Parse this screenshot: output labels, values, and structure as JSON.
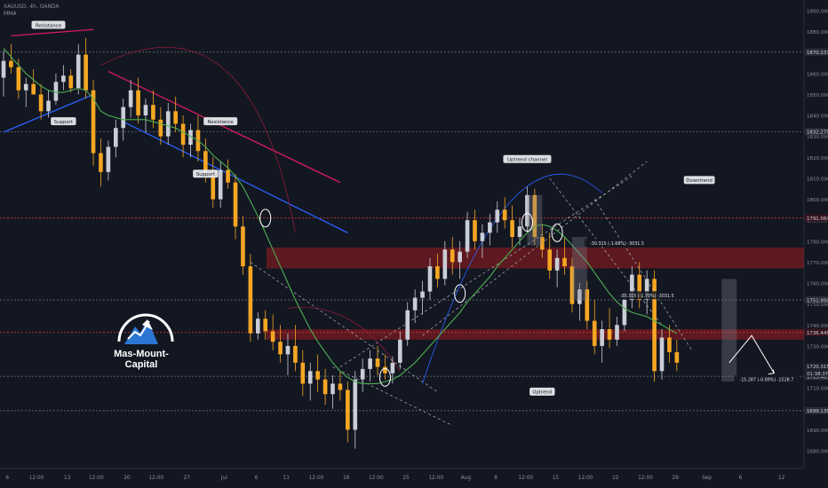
{
  "header": {
    "symbol_line": "XAUUSD, 4h, OANDA",
    "indicator": "MMA"
  },
  "brand": {
    "name": "Mas-Mount-Capital"
  },
  "colors": {
    "background": "#131722",
    "bull": "#c9cdd6",
    "bear": "#f5a623",
    "resistance": "#d81b60",
    "support": "#2962ff",
    "ma": "#4caf50",
    "zone": "#b71c1c",
    "level_line": "#e53935",
    "axis_text": "#8b90a0",
    "arc_blue": "#2962ff"
  },
  "chart_data": {
    "type": "candlestick",
    "symbol": "XAUUSD",
    "timeframe": "4h",
    "broker": "OANDA",
    "ylim": [
      1675,
      1900
    ],
    "y_ticks": [
      "1890.000",
      "1880.000",
      "1870.000",
      "1860.000",
      "1850.000",
      "1840.000",
      "1830.000",
      "1820.000",
      "1810.000",
      "1800.000",
      "1790.000",
      "1780.000",
      "1770.000",
      "1760.000",
      "1750.000",
      "1740.000",
      "1730.000",
      "1720.000",
      "1710.000",
      "1700.000",
      "1690.000",
      "1680.000"
    ],
    "y_tick_values": [
      1890,
      1880,
      1870,
      1860,
      1850,
      1840,
      1830,
      1820,
      1810,
      1800,
      1790,
      1780,
      1770,
      1760,
      1750,
      1740,
      1730,
      1720,
      1710,
      1700,
      1690,
      1680
    ],
    "x_ticks": [
      "6",
      "12:00",
      "13",
      "12:00",
      "20",
      "12:00",
      "27",
      "Jul",
      "6",
      "11",
      "12:00",
      "18",
      "12:00",
      "25",
      "12:00",
      "Aug",
      "8",
      "12:00",
      "15",
      "12:00",
      "22",
      "12:00",
      "29",
      "Sep",
      "6",
      "12"
    ],
    "x_tick_index": [
      0.5,
      4.4,
      8.5,
      12.4,
      16.5,
      20.4,
      24.5,
      29.5,
      33.8,
      37.8,
      41.8,
      45.8,
      49.8,
      53.8,
      57.8,
      61.8,
      65.8,
      69.8,
      73.8,
      77.8,
      81.8,
      85.8,
      89.8,
      94.0,
      98.5,
      104.0
    ],
    "x_max_index": 107,
    "candles": [
      [
        1858,
        1871,
        1849,
        1866
      ],
      [
        1866,
        1874,
        1860,
        1863
      ],
      [
        1863,
        1867,
        1848,
        1852
      ],
      [
        1852,
        1858,
        1844,
        1855
      ],
      [
        1855,
        1862,
        1850,
        1850
      ],
      [
        1850,
        1855,
        1838,
        1842
      ],
      [
        1842,
        1852,
        1839,
        1847
      ],
      [
        1847,
        1860,
        1845,
        1856
      ],
      [
        1856,
        1864,
        1852,
        1859
      ],
      [
        1859,
        1862,
        1851,
        1853
      ],
      [
        1853,
        1874,
        1850,
        1869
      ],
      [
        1869,
        1877,
        1848,
        1852
      ],
      [
        1852,
        1857,
        1816,
        1822
      ],
      [
        1822,
        1829,
        1806,
        1813
      ],
      [
        1813,
        1828,
        1809,
        1825
      ],
      [
        1825,
        1838,
        1820,
        1834
      ],
      [
        1834,
        1848,
        1828,
        1844
      ],
      [
        1844,
        1857,
        1839,
        1852
      ],
      [
        1852,
        1858,
        1836,
        1840
      ],
      [
        1840,
        1848,
        1832,
        1845
      ],
      [
        1845,
        1852,
        1834,
        1838
      ],
      [
        1838,
        1844,
        1826,
        1830
      ],
      [
        1830,
        1846,
        1826,
        1842
      ],
      [
        1842,
        1849,
        1832,
        1836
      ],
      [
        1836,
        1840,
        1820,
        1826
      ],
      [
        1826,
        1836,
        1820,
        1833
      ],
      [
        1833,
        1840,
        1818,
        1823
      ],
      [
        1823,
        1829,
        1808,
        1812
      ],
      [
        1812,
        1820,
        1796,
        1800
      ],
      [
        1800,
        1818,
        1796,
        1814
      ],
      [
        1814,
        1819,
        1805,
        1808
      ],
      [
        1808,
        1812,
        1781,
        1787
      ],
      [
        1787,
        1792,
        1764,
        1768
      ],
      [
        1768,
        1774,
        1732,
        1736
      ],
      [
        1736,
        1746,
        1733,
        1743
      ],
      [
        1743,
        1747,
        1733,
        1737
      ],
      [
        1737,
        1745,
        1728,
        1732
      ],
      [
        1732,
        1740,
        1722,
        1726
      ],
      [
        1726,
        1736,
        1716,
        1730
      ],
      [
        1730,
        1740,
        1718,
        1722
      ],
      [
        1722,
        1728,
        1706,
        1712
      ],
      [
        1712,
        1722,
        1704,
        1718
      ],
      [
        1718,
        1726,
        1708,
        1714
      ],
      [
        1714,
        1719,
        1702,
        1707
      ],
      [
        1707,
        1716,
        1700,
        1712
      ],
      [
        1712,
        1718,
        1704,
        1709
      ],
      [
        1709,
        1713,
        1684,
        1690
      ],
      [
        1690,
        1718,
        1681,
        1714
      ],
      [
        1714,
        1724,
        1708,
        1719
      ],
      [
        1719,
        1728,
        1713,
        1724
      ],
      [
        1724,
        1730,
        1716,
        1720
      ],
      [
        1720,
        1726,
        1714,
        1717
      ],
      [
        1717,
        1725,
        1712,
        1722
      ],
      [
        1722,
        1737,
        1719,
        1733
      ],
      [
        1733,
        1751,
        1730,
        1747
      ],
      [
        1747,
        1757,
        1741,
        1753
      ],
      [
        1753,
        1761,
        1745,
        1756
      ],
      [
        1756,
        1772,
        1752,
        1768
      ],
      [
        1768,
        1774,
        1758,
        1762
      ],
      [
        1762,
        1780,
        1759,
        1776
      ],
      [
        1776,
        1782,
        1764,
        1770
      ],
      [
        1770,
        1780,
        1762,
        1775
      ],
      [
        1775,
        1794,
        1772,
        1790
      ],
      [
        1790,
        1795,
        1776,
        1780
      ],
      [
        1780,
        1788,
        1772,
        1784
      ],
      [
        1784,
        1793,
        1778,
        1789
      ],
      [
        1789,
        1799,
        1784,
        1795
      ],
      [
        1795,
        1801,
        1786,
        1790
      ],
      [
        1790,
        1797,
        1777,
        1782
      ],
      [
        1782,
        1791,
        1778,
        1787
      ],
      [
        1787,
        1806,
        1784,
        1802
      ],
      [
        1802,
        1805,
        1778,
        1782
      ],
      [
        1782,
        1788,
        1772,
        1776
      ],
      [
        1776,
        1784,
        1762,
        1766
      ],
      [
        1766,
        1776,
        1758,
        1772
      ],
      [
        1772,
        1782,
        1764,
        1768
      ],
      [
        1768,
        1772,
        1746,
        1750
      ],
      [
        1750,
        1760,
        1742,
        1757
      ],
      [
        1757,
        1761,
        1738,
        1742
      ],
      [
        1742,
        1752,
        1726,
        1730
      ],
      [
        1730,
        1742,
        1722,
        1738
      ],
      [
        1738,
        1748,
        1729,
        1733
      ],
      [
        1733,
        1744,
        1730,
        1740
      ],
      [
        1740,
        1756,
        1737,
        1752
      ],
      [
        1752,
        1768,
        1748,
        1764
      ],
      [
        1764,
        1770,
        1748,
        1752
      ],
      [
        1752,
        1766,
        1745,
        1762
      ],
      [
        1762,
        1766,
        1713,
        1718
      ],
      [
        1718,
        1738,
        1714,
        1734
      ],
      [
        1734,
        1740,
        1722,
        1727
      ],
      [
        1727,
        1733,
        1718,
        1722
      ]
    ],
    "moving_average": [
      1872,
      1868,
      1864,
      1860,
      1857,
      1854,
      1852,
      1851,
      1851,
      1852,
      1853,
      1852,
      1848,
      1842,
      1840,
      1839,
      1838,
      1838,
      1838,
      1838,
      1837,
      1836,
      1835,
      1834,
      1832,
      1830,
      1828,
      1825,
      1821,
      1818,
      1815,
      1811,
      1806,
      1799,
      1792,
      1784,
      1776,
      1768,
      1760,
      1752,
      1745,
      1738,
      1732,
      1727,
      1722,
      1718,
      1715,
      1713,
      1712,
      1712,
      1712,
      1713,
      1714,
      1716,
      1719,
      1722,
      1726,
      1730,
      1734,
      1738,
      1742,
      1746,
      1751,
      1755,
      1759,
      1763,
      1768,
      1772,
      1776,
      1780,
      1784,
      1787,
      1788,
      1787,
      1785,
      1782,
      1778,
      1774,
      1770,
      1765,
      1760,
      1755,
      1751,
      1748,
      1746,
      1745,
      1744,
      1742,
      1740,
      1738,
      1736
    ],
    "levels": [
      {
        "label": "1870.237",
        "value": 1870.237
      },
      {
        "label": "1832.275",
        "value": 1832.275
      },
      {
        "label": "1791.064",
        "value": 1791.064
      },
      {
        "label": "1751.950",
        "value": 1751.95
      },
      {
        "label": "1736.445",
        "value": 1736.445
      },
      {
        "label": "1715.485",
        "value": 1715.485
      },
      {
        "label": "1699.135",
        "value": 1699.135
      }
    ],
    "price_tags": [
      {
        "label": "1720.315",
        "value": 1720.315
      },
      {
        "label": "01:38:37",
        "value": 1717.0
      }
    ],
    "zones": [
      {
        "from": 1767,
        "to": 1777
      },
      {
        "from": 1733,
        "to": 1738
      }
    ],
    "trend_lines": [
      {
        "kind": "resistance",
        "from": [
          1,
          1878
        ],
        "to": [
          12,
          1881
        ]
      },
      {
        "kind": "support",
        "from": [
          0,
          1832
        ],
        "to": [
          12,
          1850
        ]
      },
      {
        "kind": "resistance",
        "from": [
          14,
          1861
        ],
        "to": [
          45,
          1808
        ]
      },
      {
        "kind": "support",
        "from": [
          16,
          1837
        ],
        "to": [
          46,
          1784
        ]
      }
    ],
    "annotations": [
      {
        "text": "Resistance",
        "at": [
          6,
          1883
        ]
      },
      {
        "text": "Support",
        "at": [
          8,
          1837
        ]
      },
      {
        "text": "Resistance",
        "at": [
          29,
          1837
        ]
      },
      {
        "text": "Support",
        "at": [
          27,
          1812
        ]
      },
      {
        "text": "Uptrend channel",
        "at": [
          70,
          1819
        ]
      },
      {
        "text": "Downtrend",
        "at": [
          93,
          1809
        ]
      },
      {
        "text": "Uptrend",
        "at": [
          72,
          1708
        ]
      },
      {
        "text": "-30.315 (-1.68%) -3031.5",
        "at": [
          82,
          1779
        ]
      },
      {
        "text": "-30.315 (-1.70%) -3031.5",
        "at": [
          86,
          1754
        ]
      },
      {
        "text": "-15.287 (-0.89%) -1528.7",
        "at": [
          102,
          1714
        ]
      }
    ]
  }
}
